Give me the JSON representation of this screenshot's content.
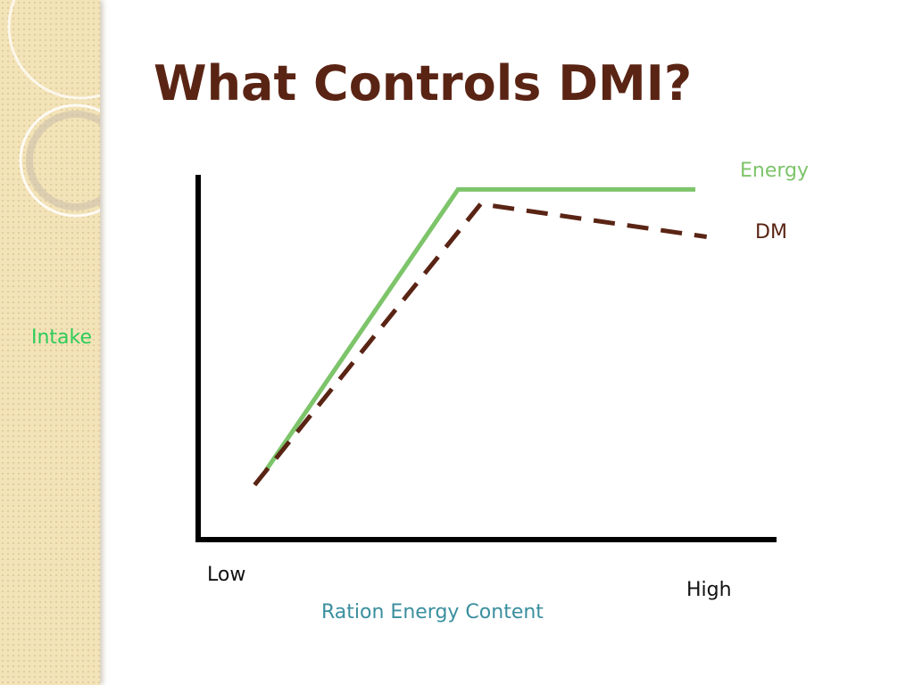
{
  "slide": {
    "title": "What Controls DMI?"
  },
  "colors": {
    "title": "#5a2414",
    "energy_line": "#7dc46a",
    "dm_line": "#5a2414",
    "intake_label": "#2ecc5a",
    "xaxis_label": "#3a8f9e",
    "side_strip": "#f3e3b8"
  },
  "chart_data": {
    "type": "line",
    "title": "",
    "xlabel": "Ration Energy Content",
    "ylabel": "Intake",
    "x_tick_labels": [
      "Low",
      "High"
    ],
    "xlim": [
      0,
      10
    ],
    "ylim": [
      0,
      10
    ],
    "grid": false,
    "series": [
      {
        "name": "Energy",
        "style": "solid",
        "color": "#7dc46a",
        "points": [
          [
            1.2,
            1.9
          ],
          [
            4.6,
            9.6
          ],
          [
            8.8,
            9.6
          ]
        ]
      },
      {
        "name": "DM",
        "style": "dashed",
        "color": "#5a2414",
        "points": [
          [
            1.0,
            1.5
          ],
          [
            5.0,
            9.2
          ],
          [
            9.0,
            8.3
          ]
        ]
      }
    ]
  }
}
